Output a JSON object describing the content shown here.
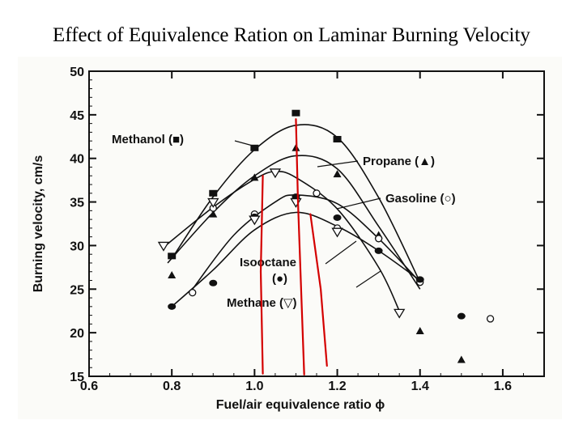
{
  "slide": {
    "title": "Effect of Equivalence Ration on Laminar Burning Velocity"
  },
  "colors": {
    "curve": "#111111",
    "overlay": "#d40000"
  },
  "chart_data": {
    "type": "scatter",
    "title": "",
    "xlabel": "Fuel/air equivalence ratio ϕ",
    "ylabel": "Burning velocity, cm/s",
    "xlim": [
      0.6,
      1.7
    ],
    "ylim": [
      15,
      50
    ],
    "xticks": [
      0.6,
      0.8,
      1.0,
      1.2,
      1.4,
      1.6
    ],
    "xtick_labels": [
      "0.6",
      "0.8",
      "1.0",
      "1.2",
      "1.4",
      "1.6"
    ],
    "yticks": [
      15,
      20,
      25,
      30,
      35,
      40,
      45,
      50
    ],
    "ytick_labels": [
      "15",
      "20",
      "25",
      "30",
      "35",
      "40",
      "45",
      "50"
    ],
    "grid": false,
    "legend": "inline annotations",
    "series": [
      {
        "name": "Methanol",
        "label": "Methanol (■)",
        "marker": "square",
        "x": [
          0.8,
          0.9,
          1.0,
          1.1,
          1.2
        ],
        "y": [
          28.8,
          36.0,
          41.2,
          45.2,
          42.2
        ],
        "curve": [
          [
            0.8,
            28.5
          ],
          [
            0.9,
            35.6
          ],
          [
            1.0,
            41.0
          ],
          [
            1.1,
            43.8
          ],
          [
            1.2,
            42.4
          ],
          [
            1.3,
            35.5
          ],
          [
            1.4,
            25.8
          ]
        ]
      },
      {
        "name": "Propane",
        "label": "Propane (▲)",
        "marker": "triangle",
        "x": [
          0.8,
          0.9,
          1.0,
          1.1,
          1.2,
          1.3,
          1.4,
          1.5
        ],
        "y": [
          26.6,
          33.6,
          37.8,
          41.2,
          38.2,
          31.2,
          20.2,
          16.9
        ],
        "curve": [
          [
            0.79,
            28.0
          ],
          [
            0.9,
            33.8
          ],
          [
            1.0,
            38.0
          ],
          [
            1.1,
            40.3
          ],
          [
            1.2,
            38.8
          ],
          [
            1.3,
            32.2
          ],
          [
            1.4,
            25.0
          ]
        ]
      },
      {
        "name": "Gasoline",
        "label": "Gasoline (○)",
        "marker": "circle-open",
        "x": [
          0.85,
          0.9,
          1.0,
          1.1,
          1.15,
          1.2,
          1.3,
          1.4,
          1.57
        ],
        "y": [
          24.6,
          34.3,
          33.6,
          35.5,
          36.0,
          32.0,
          30.8,
          25.8,
          21.6
        ],
        "curve": [
          [
            0.85,
            25.0
          ],
          [
            0.95,
            31.2
          ],
          [
            1.05,
            35.0
          ],
          [
            1.1,
            35.8
          ],
          [
            1.2,
            34.8
          ],
          [
            1.3,
            30.8
          ],
          [
            1.4,
            25.8
          ]
        ]
      },
      {
        "name": "Isooctane",
        "label": "Isooctane (●)",
        "marker": "circle-filled",
        "x": [
          0.8,
          0.9,
          1.0,
          1.1,
          1.2,
          1.3,
          1.4,
          1.5
        ],
        "y": [
          23.0,
          25.7,
          33.3,
          35.6,
          33.2,
          29.4,
          26.1,
          21.9
        ],
        "curve": [
          [
            0.8,
            23.0
          ],
          [
            0.9,
            27.2
          ],
          [
            1.0,
            31.8
          ],
          [
            1.1,
            33.8
          ],
          [
            1.2,
            32.2
          ],
          [
            1.3,
            29.4
          ],
          [
            1.4,
            26.0
          ]
        ]
      },
      {
        "name": "Methane",
        "label": "Methane (▽)",
        "marker": "triangle-down-open",
        "x": [
          0.78,
          0.9,
          1.0,
          1.05,
          1.1,
          1.2,
          1.35
        ],
        "y": [
          30.0,
          35.0,
          33.0,
          38.4,
          35.0,
          31.6,
          22.3
        ],
        "curve": [
          [
            0.78,
            29.8
          ],
          [
            0.9,
            34.4
          ],
          [
            1.0,
            37.6
          ],
          [
            1.05,
            38.5
          ],
          [
            1.1,
            37.8
          ],
          [
            1.2,
            34.2
          ],
          [
            1.3,
            27.5
          ],
          [
            1.35,
            22.5
          ]
        ]
      }
    ],
    "overlay_lines": [
      [
        [
          1.02,
          38.0
        ],
        [
          1.015,
          27.0
        ],
        [
          1.02,
          15.3
        ]
      ],
      [
        [
          1.1,
          44.5
        ],
        [
          1.105,
          35.0
        ],
        [
          1.12,
          15.2
        ]
      ],
      [
        [
          1.135,
          33.6
        ],
        [
          1.16,
          25.0
        ],
        [
          1.175,
          16.2
        ]
      ]
    ]
  }
}
